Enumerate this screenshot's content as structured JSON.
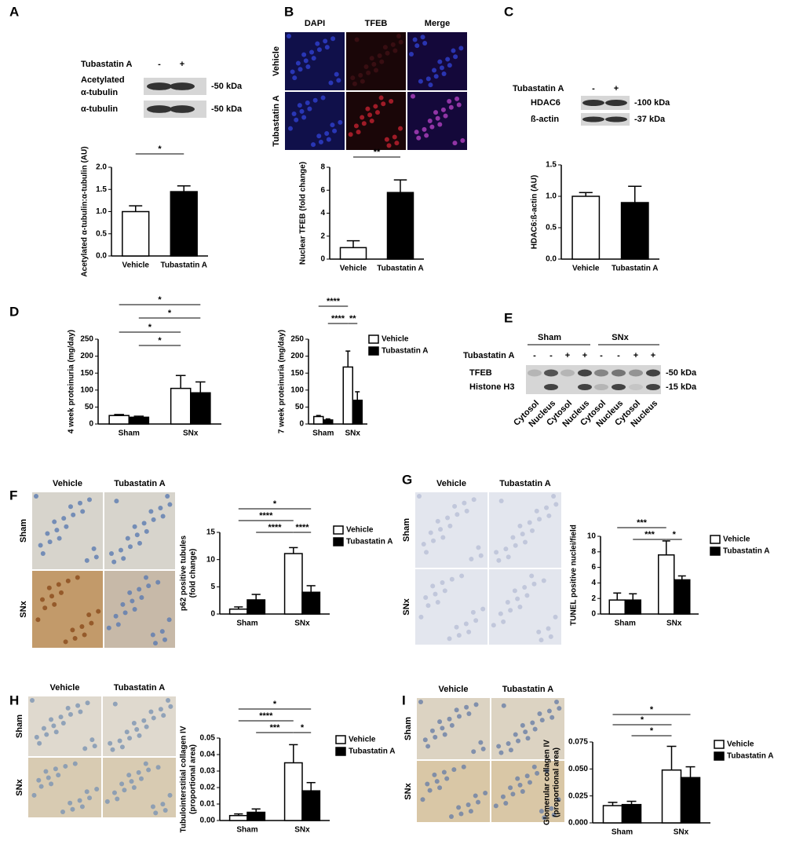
{
  "panel_letters": [
    "A",
    "B",
    "C",
    "D",
    "E",
    "F",
    "G",
    "H",
    "I"
  ],
  "blot_a": {
    "treatment": "Tubastatin A",
    "signs": [
      "-",
      "+"
    ],
    "rows": [
      {
        "label": [
          "Acetylated",
          "α-tubulin"
        ],
        "size": "-50 kDa"
      },
      {
        "label": [
          "α-tubulin"
        ],
        "size": "-50 kDa"
      }
    ]
  },
  "micro_b": {
    "columns": [
      "DAPI",
      "TFEB",
      "Merge"
    ],
    "rows": [
      "Vehicle",
      "Tubastatin A"
    ]
  },
  "blot_c": {
    "treatment": "Tubastatin A",
    "signs": [
      "-",
      "+"
    ],
    "rows": [
      {
        "label": [
          "HDAC6"
        ],
        "size": "-100 kDa"
      },
      {
        "label": [
          "ß-actin"
        ],
        "size": "-37 kDa"
      }
    ]
  },
  "blot_e": {
    "groups": [
      "Sham",
      "SNx"
    ],
    "treatment": "Tubastatin A",
    "signs": [
      "-",
      "-",
      "+",
      "+",
      "-",
      "-",
      "+",
      "+"
    ],
    "rows": [
      {
        "label": [
          "TFEB"
        ],
        "size": "-50 kDa"
      },
      {
        "label": [
          "Histone H3"
        ],
        "size": "-15 kDa"
      }
    ],
    "lanes": [
      "Cytosol",
      "Nucleus",
      "Cytosol",
      "Nucleus",
      "Cytosol",
      "Nucleus",
      "Cytosol",
      "Nucleus"
    ]
  },
  "micro_f": {
    "columns": [
      "Vehicle",
      "Tubastatin A"
    ],
    "rows": [
      "Sham",
      "SNx"
    ]
  },
  "micro_g": {
    "columns": [
      "Vehicle",
      "Tubastatin A"
    ],
    "rows": [
      "Sham",
      "SNx"
    ]
  },
  "micro_h": {
    "columns": [
      "Vehicle",
      "Tubastatin A"
    ],
    "rows": [
      "Sham",
      "SNx"
    ]
  },
  "micro_i": {
    "columns": [
      "Vehicle",
      "Tubastatin A"
    ],
    "rows": [
      "Sham",
      "SNx"
    ]
  },
  "chart_data": [
    {
      "type": "bar",
      "ylabel": [
        "Acetylated α-tubulin:α-tubulin (AU)"
      ],
      "categories": [
        "Vehicle",
        "Tubastatin A"
      ],
      "values": [
        1.0,
        1.45
      ],
      "errors": [
        0.13,
        0.13
      ],
      "colors": [
        "#ffffff",
        "#000000"
      ],
      "ylim": [
        0,
        2
      ],
      "yticks": [
        {
          "value": 0,
          "label": "0.0"
        },
        0.5,
        {
          "value": 1,
          "label": "1.0"
        },
        1.5,
        {
          "value": 2,
          "label": "2.0"
        }
      ],
      "significance": [
        "*"
      ]
    },
    {
      "type": "bar",
      "ylabel": [
        "Nuclear TFEB (fold change)"
      ],
      "categories": [
        "Vehicle",
        "Tubastatin A"
      ],
      "values": [
        1.0,
        5.8
      ],
      "errors": [
        0.6,
        1.1
      ],
      "colors": [
        "#ffffff",
        "#000000"
      ],
      "ylim": [
        0,
        8
      ],
      "yticks": [
        0,
        2,
        4,
        6,
        8
      ],
      "significance": [
        "**"
      ]
    },
    {
      "type": "bar",
      "ylabel": [
        "HDAC6:ß-actin (AU)"
      ],
      "categories": [
        "Vehicle",
        "Tubastatin A"
      ],
      "values": [
        1.0,
        0.9
      ],
      "errors": [
        0.06,
        0.26
      ],
      "colors": [
        "#ffffff",
        "#000000"
      ],
      "ylim": [
        0,
        1.5
      ],
      "yticks": [
        {
          "value": 0,
          "label": "0.0"
        },
        0.5,
        {
          "value": 1,
          "label": "1.0"
        },
        1.5
      ],
      "significance": []
    },
    {
      "type": "grouped_bar",
      "ylabel": [
        "4 week proteinuria (mg/day)"
      ],
      "categories": [
        "Sham",
        "SNx"
      ],
      "series": [
        {
          "name": "Vehicle",
          "color": "#ffffff",
          "values": [
            25,
            105
          ],
          "errors": [
            3,
            38
          ]
        },
        {
          "name": "Tubastatin A",
          "color": "#000000",
          "values": [
            20,
            92
          ],
          "errors": [
            3,
            32
          ]
        }
      ],
      "legend": false,
      "ylim": [
        0,
        250
      ],
      "yticks": [
        0,
        50,
        100,
        150,
        200,
        250
      ],
      "significance": [
        "*",
        "*",
        "*",
        "*"
      ]
    },
    {
      "type": "grouped_bar",
      "ylabel": [
        "7 week proteinuria (mg/day)"
      ],
      "categories": [
        "Sham",
        "SNx"
      ],
      "series": [
        {
          "name": "Vehicle",
          "color": "#ffffff",
          "values": [
            22,
            168
          ],
          "errors": [
            3,
            47
          ]
        },
        {
          "name": "Tubastatin A",
          "color": "#000000",
          "values": [
            12,
            70
          ],
          "errors": [
            3,
            25
          ]
        }
      ],
      "legend": true,
      "ylim": [
        0,
        250
      ],
      "yticks": [
        0,
        50,
        100,
        150,
        200,
        250
      ],
      "significance": [
        "****",
        "****",
        "**"
      ]
    },
    {
      "type": "grouped_bar",
      "ylabel": [
        "p62 positive tubules",
        "(fold change)"
      ],
      "categories": [
        "Sham",
        "SNx"
      ],
      "series": [
        {
          "name": "Vehicle",
          "color": "#ffffff",
          "values": [
            0.9,
            11.1
          ],
          "errors": [
            0.4,
            1.1
          ]
        },
        {
          "name": "Tubastatin A",
          "color": "#000000",
          "values": [
            2.6,
            4.0
          ],
          "errors": [
            1.0,
            1.2
          ]
        }
      ],
      "legend": true,
      "ylim": [
        0,
        15
      ],
      "yticks": [
        0,
        5,
        10,
        15
      ],
      "significance": [
        "*",
        "****",
        "****",
        "****"
      ]
    },
    {
      "type": "grouped_bar",
      "ylabel": [
        "TUNEL positive nuclei/field"
      ],
      "categories": [
        "Sham",
        "SNx"
      ],
      "series": [
        {
          "name": "Vehicle",
          "color": "#ffffff",
          "values": [
            1.8,
            7.6
          ],
          "errors": [
            0.9,
            1.8
          ]
        },
        {
          "name": "Tubastatin A",
          "color": "#000000",
          "values": [
            1.8,
            4.4
          ],
          "errors": [
            0.8,
            0.5
          ]
        }
      ],
      "legend": true,
      "ylim": [
        0,
        10
      ],
      "yticks": [
        0,
        2,
        4,
        6,
        8,
        10
      ],
      "significance": [
        "***",
        "***",
        "*"
      ]
    },
    {
      "type": "grouped_bar",
      "ylabel": [
        "Tubulointerstitial collagen IV",
        "(proportional area)"
      ],
      "categories": [
        "Sham",
        "SNx"
      ],
      "series": [
        {
          "name": "Vehicle",
          "color": "#ffffff",
          "values": [
            0.003,
            0.035
          ],
          "errors": [
            0.001,
            0.011
          ]
        },
        {
          "name": "Tubastatin A",
          "color": "#000000",
          "values": [
            0.005,
            0.018
          ],
          "errors": [
            0.002,
            0.005
          ]
        }
      ],
      "legend": true,
      "ylim": [
        0,
        0.05
      ],
      "yticks": [
        {
          "value": 0,
          "label": "0.00"
        },
        0.01,
        0.02,
        0.03,
        0.04,
        0.05
      ],
      "significance": [
        "*",
        "****",
        "***",
        "*"
      ]
    },
    {
      "type": "grouped_bar",
      "ylabel": [
        "Glomerular collagen IV",
        "(proportional area)"
      ],
      "categories": [
        "Sham",
        "SNx"
      ],
      "series": [
        {
          "name": "Vehicle",
          "color": "#ffffff",
          "values": [
            0.016,
            0.049
          ],
          "errors": [
            0.003,
            0.022
          ]
        },
        {
          "name": "Tubastatin A",
          "color": "#000000",
          "values": [
            0.017,
            0.042
          ],
          "errors": [
            0.003,
            0.01
          ]
        }
      ],
      "legend": true,
      "ylim": [
        0,
        0.075
      ],
      "yticks": [
        {
          "value": 0,
          "label": "0.000"
        },
        0.025,
        {
          "value": 0.05,
          "label": "0.050"
        },
        0.075
      ],
      "significance": [
        "*",
        "*",
        "*"
      ]
    }
  ]
}
